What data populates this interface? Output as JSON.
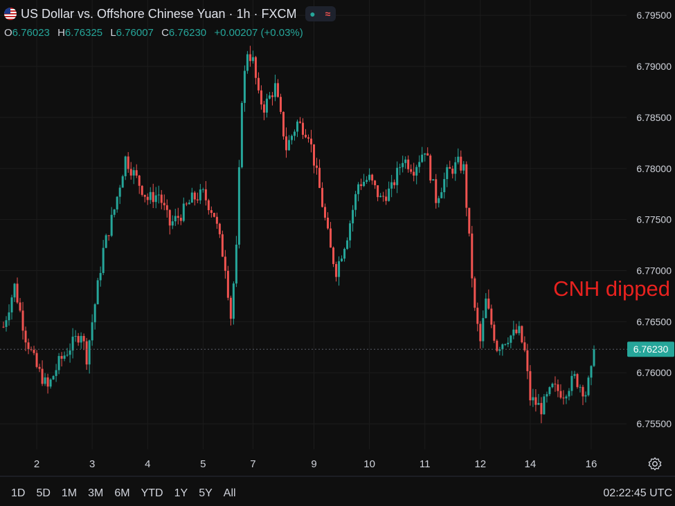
{
  "header": {
    "title": "US Dollar vs. Offshore Chinese Yuan · 1h · FXCM",
    "flag_icon": "us-cn-flag-icon",
    "status_icon": "market-open-dot-icon",
    "indicator_icon": "wave-icon"
  },
  "ohlc": {
    "o_label": "O",
    "o": "6.76023",
    "h_label": "H",
    "h": "6.76325",
    "l_label": "L",
    "l": "6.76007",
    "c_label": "C",
    "c": "6.76230",
    "change": "+0.00207 (+0.03%)"
  },
  "ranges": [
    "1D",
    "5D",
    "1M",
    "3M",
    "6M",
    "YTD",
    "1Y",
    "5Y",
    "All"
  ],
  "clock": "02:22:45 UTC",
  "settings_icon": "gear-icon",
  "colors": {
    "up": "#26a69a",
    "down": "#ef5350",
    "background": "#0f0f0f",
    "grid": "#1c1c1c",
    "annotation": "#e8221f"
  },
  "chart_data": {
    "type": "candlestick",
    "ylim": [
      6.7525,
      6.7965
    ],
    "y_ticks": [
      "6.79500",
      "6.79000",
      "6.78500",
      "6.78000",
      "6.77500",
      "6.77000",
      "6.76500",
      "6.76000",
      "6.75500"
    ],
    "x_ticks": [
      {
        "label": "2",
        "t": 12
      },
      {
        "label": "3",
        "t": 32
      },
      {
        "label": "4",
        "t": 52
      },
      {
        "label": "5",
        "t": 72
      },
      {
        "label": "7",
        "t": 90
      },
      {
        "label": "9",
        "t": 112
      },
      {
        "label": "10",
        "t": 132
      },
      {
        "label": "11",
        "t": 152
      },
      {
        "label": "12",
        "t": 172
      },
      {
        "label": "14",
        "t": 190
      },
      {
        "label": "16",
        "t": 212
      }
    ],
    "close_path": [
      [
        0,
        6.7645
      ],
      [
        4,
        6.7685
      ],
      [
        8,
        6.7635
      ],
      [
        12,
        6.7605
      ],
      [
        16,
        6.7585
      ],
      [
        20,
        6.761
      ],
      [
        24,
        6.7625
      ],
      [
        28,
        6.764
      ],
      [
        30,
        6.7615
      ],
      [
        32,
        6.765
      ],
      [
        36,
        6.772
      ],
      [
        40,
        6.776
      ],
      [
        44,
        6.781
      ],
      [
        48,
        6.779
      ],
      [
        52,
        6.777
      ],
      [
        56,
        6.7775
      ],
      [
        60,
        6.7745
      ],
      [
        64,
        6.7755
      ],
      [
        68,
        6.777
      ],
      [
        72,
        6.7775
      ],
      [
        76,
        6.7755
      ],
      [
        80,
        6.7705
      ],
      [
        82,
        6.7655
      ],
      [
        84,
        6.772
      ],
      [
        86,
        6.787
      ],
      [
        88,
        6.7915
      ],
      [
        90,
        6.7905
      ],
      [
        92,
        6.787
      ],
      [
        94,
        6.786
      ],
      [
        98,
        6.788
      ],
      [
        102,
        6.782
      ],
      [
        106,
        6.7845
      ],
      [
        110,
        6.7835
      ],
      [
        114,
        6.778
      ],
      [
        118,
        6.772
      ],
      [
        120,
        6.77
      ],
      [
        124,
        6.7735
      ],
      [
        128,
        6.7785
      ],
      [
        132,
        6.779
      ],
      [
        136,
        6.777
      ],
      [
        140,
        6.778
      ],
      [
        144,
        6.781
      ],
      [
        148,
        6.78
      ],
      [
        152,
        6.782
      ],
      [
        156,
        6.777
      ],
      [
        160,
        6.7795
      ],
      [
        164,
        6.7805
      ],
      [
        166,
        6.78
      ],
      [
        168,
        6.773
      ],
      [
        170,
        6.766
      ],
      [
        172,
        6.763
      ],
      [
        174,
        6.767
      ],
      [
        178,
        6.7625
      ],
      [
        182,
        6.7635
      ],
      [
        186,
        6.764
      ],
      [
        188,
        6.762
      ],
      [
        190,
        6.7575
      ],
      [
        194,
        6.7565
      ],
      [
        198,
        6.7585
      ],
      [
        202,
        6.758
      ],
      [
        206,
        6.7595
      ],
      [
        210,
        6.758
      ],
      [
        212,
        6.76
      ],
      [
        213,
        6.7623
      ]
    ],
    "last_price": "6.76230",
    "annotations": [
      {
        "text": "CNH dipped"
      }
    ]
  }
}
